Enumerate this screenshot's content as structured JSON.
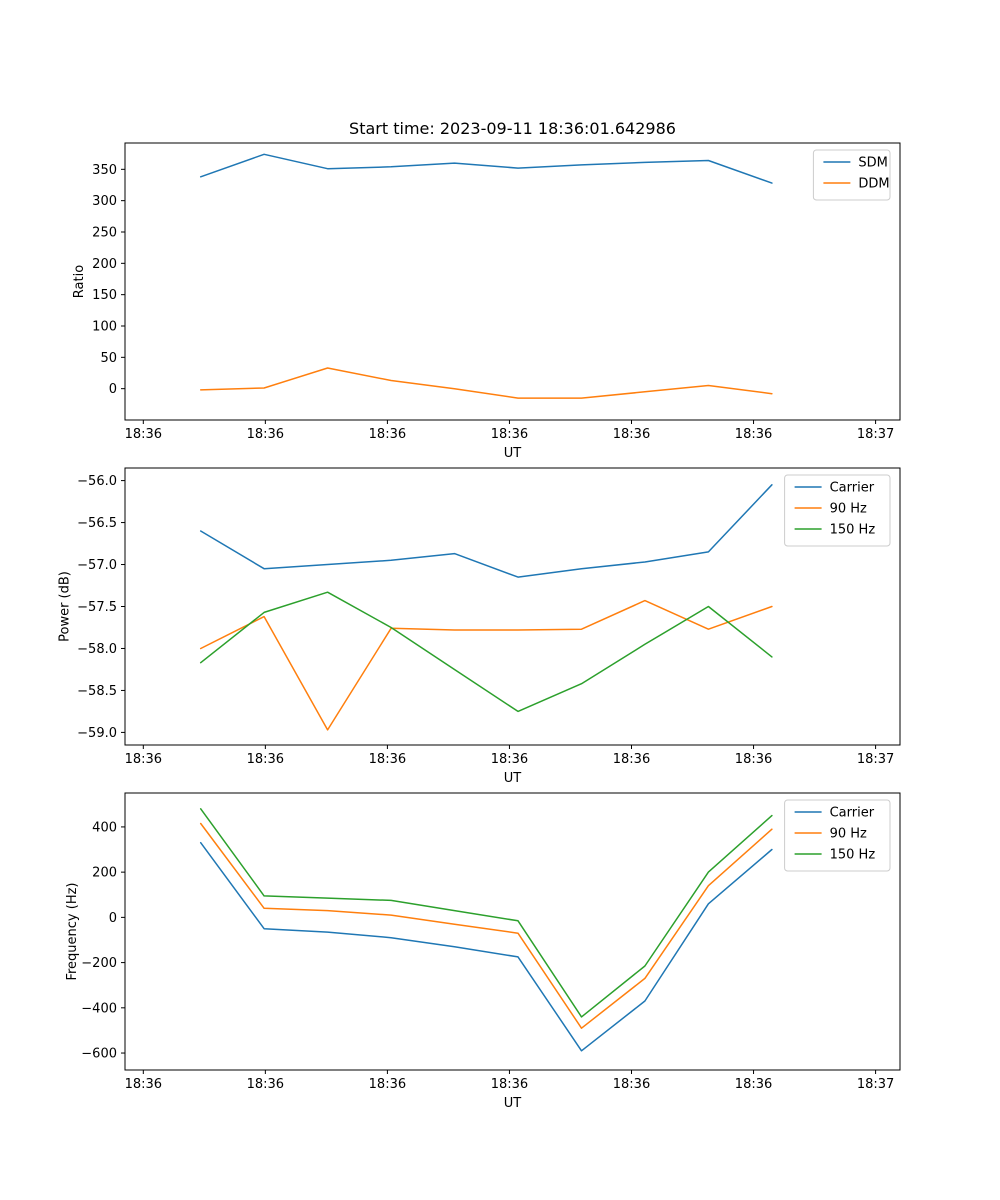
{
  "figure": {
    "background": "#ffffff"
  },
  "colors": {
    "blue": "#1f77b4",
    "orange": "#ff7f0e",
    "green": "#2ca02c"
  },
  "chart_data": [
    {
      "type": "line",
      "title": "Start time: 2023-09-11 18:36:01.642986",
      "xlabel": "UT",
      "ylabel": "Ratio",
      "grid": false,
      "legend_position": "upper right",
      "xlim": [
        -1.5,
        62
      ],
      "ylim": [
        -50,
        392
      ],
      "x_ticks": {
        "values": [
          0,
          10,
          20,
          30,
          40,
          50,
          60
        ],
        "labels": [
          "18:36",
          "18:36",
          "18:36",
          "18:36",
          "18:36",
          "18:36",
          "18:37"
        ]
      },
      "y_ticks": {
        "values": [
          0,
          50,
          100,
          150,
          200,
          250,
          300,
          350
        ],
        "labels": [
          "0",
          "50",
          "100",
          "150",
          "200",
          "250",
          "300",
          "350"
        ]
      },
      "x": [
        4.7,
        9.9,
        15.1,
        20.3,
        25.5,
        30.7,
        35.9,
        41.1,
        46.3,
        51.5
      ],
      "series": [
        {
          "name": "SDM",
          "color": "#1f77b4",
          "values": [
            338,
            374,
            351,
            354,
            360,
            352,
            357,
            361,
            364,
            328
          ]
        },
        {
          "name": "DDM",
          "color": "#ff7f0e",
          "values": [
            -2,
            1,
            33,
            13,
            0,
            -15,
            -15,
            -5,
            5,
            -8
          ]
        }
      ]
    },
    {
      "type": "line",
      "title": "",
      "xlabel": "UT",
      "ylabel": "Power (dB)",
      "grid": false,
      "legend_position": "upper right",
      "xlim": [
        -1.5,
        62
      ],
      "ylim": [
        -59.15,
        -55.85
      ],
      "x_ticks": {
        "values": [
          0,
          10,
          20,
          30,
          40,
          50,
          60
        ],
        "labels": [
          "18:36",
          "18:36",
          "18:36",
          "18:36",
          "18:36",
          "18:36",
          "18:37"
        ]
      },
      "y_ticks": {
        "values": [
          -59.0,
          -58.5,
          -58.0,
          -57.5,
          -57.0,
          -56.5,
          -56.0
        ],
        "labels": [
          "−59.0",
          "−58.5",
          "−58.0",
          "−57.5",
          "−57.0",
          "−56.5",
          "−56.0"
        ]
      },
      "x": [
        4.7,
        9.9,
        15.1,
        20.3,
        25.5,
        30.7,
        35.9,
        41.1,
        46.3,
        51.5
      ],
      "series": [
        {
          "name": "Carrier",
          "color": "#1f77b4",
          "values": [
            -56.6,
            -57.05,
            -57.0,
            -56.95,
            -56.87,
            -57.15,
            -57.05,
            -56.97,
            -56.85,
            -56.05
          ]
        },
        {
          "name": "90 Hz",
          "color": "#ff7f0e",
          "values": [
            -58.0,
            -57.62,
            -58.97,
            -57.76,
            -57.78,
            -57.78,
            -57.77,
            -57.43,
            -57.77,
            -57.5
          ]
        },
        {
          "name": "150 Hz",
          "color": "#2ca02c",
          "values": [
            -58.17,
            -57.57,
            -57.33,
            -57.75,
            -58.25,
            -58.75,
            -58.42,
            -57.95,
            -57.5,
            -58.1
          ]
        }
      ]
    },
    {
      "type": "line",
      "title": "",
      "xlabel": "UT",
      "ylabel": "Frequency (Hz)",
      "grid": false,
      "legend_position": "upper right",
      "xlim": [
        -1.5,
        62
      ],
      "ylim": [
        -675,
        550
      ],
      "x_ticks": {
        "values": [
          0,
          10,
          20,
          30,
          40,
          50,
          60
        ],
        "labels": [
          "18:36",
          "18:36",
          "18:36",
          "18:36",
          "18:36",
          "18:36",
          "18:37"
        ]
      },
      "y_ticks": {
        "values": [
          -600,
          -400,
          -200,
          0,
          200,
          400
        ],
        "labels": [
          "−600",
          "−400",
          "−200",
          "0",
          "200",
          "400"
        ]
      },
      "x": [
        4.7,
        9.9,
        15.1,
        20.3,
        25.5,
        30.7,
        35.9,
        41.1,
        46.3,
        51.5
      ],
      "series": [
        {
          "name": "Carrier",
          "color": "#1f77b4",
          "values": [
            330,
            -50,
            -65,
            -90,
            -130,
            -175,
            -590,
            -370,
            60,
            300
          ]
        },
        {
          "name": "90 Hz",
          "color": "#ff7f0e",
          "values": [
            415,
            40,
            30,
            10,
            -30,
            -70,
            -490,
            -270,
            140,
            390
          ]
        },
        {
          "name": "150 Hz",
          "color": "#2ca02c",
          "values": [
            480,
            95,
            85,
            75,
            30,
            -15,
            -440,
            -215,
            200,
            450
          ]
        }
      ]
    }
  ]
}
